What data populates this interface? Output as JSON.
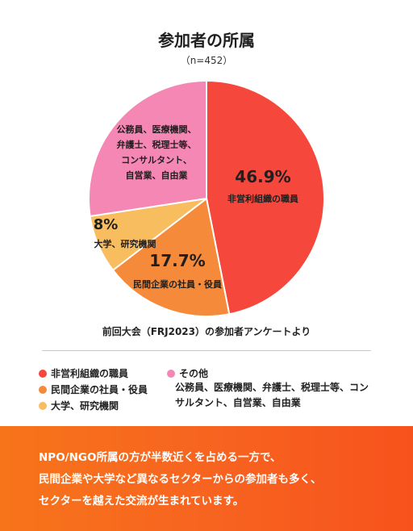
{
  "header": {
    "title": "参加者の所属",
    "subtitle": "（n=452）"
  },
  "chart_data": {
    "type": "pie",
    "title": "参加者の所属",
    "n_label": "（n=452）",
    "slices": [
      {
        "name": "非営利組織の職員",
        "value": 46.9,
        "value_label": "46.9%",
        "color": "#f5473c",
        "label_lines": [
          "非営利組織の職員"
        ]
      },
      {
        "name": "民間企業の社員・役員",
        "value": 17.7,
        "value_label": "17.7%",
        "color": "#f58a3a",
        "label_lines": [
          "民間企業の社員・役員"
        ]
      },
      {
        "name": "大学、研究機関",
        "value": 8,
        "value_label": "8%",
        "color": "#f8bd5f",
        "label_lines": [
          "大学、研究機関"
        ]
      },
      {
        "name": "その他",
        "value": 27.4,
        "value_label": "",
        "color": "#f587b4",
        "label_lines": [
          "公務員、医療機関、",
          "弁護士、税理士等、",
          "コンサルタント、",
          "自営業、自由業"
        ]
      }
    ]
  },
  "source": "前回大会（FRJ2023）の参加者アンケートより",
  "legend": {
    "items": [
      {
        "label": "非営利組織の職員",
        "color": "#f5473c"
      },
      {
        "label": "民間企業の社員・役員",
        "color": "#f58a3a"
      },
      {
        "label": "大学、研究機関",
        "color": "#f8bd5f"
      },
      {
        "label": "その他",
        "color": "#f587b4"
      }
    ],
    "other_note": "公務員、医療機関、弁護士、税理士等、コンサルタント、自営業、自由業"
  },
  "footer": {
    "text": "NPO/NGO所属の方が半数近くを占める一方で、\n民間企業や大学など異なるセクターからの参加者も多く、\nセクターを越えた交流が生まれています。",
    "background": "#f76420"
  }
}
